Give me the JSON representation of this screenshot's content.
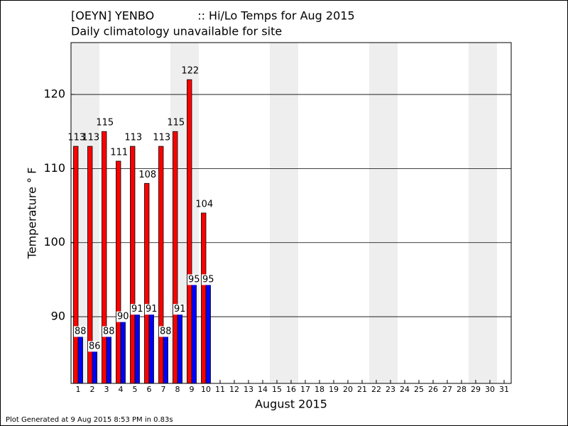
{
  "chart_data": {
    "type": "bar",
    "title": "[OEYN] YENBO            :: Hi/Lo Temps for Aug 2015",
    "subtitle": "Daily climatology unavailable for site",
    "ylabel": "Temperature ° F",
    "xlabel": "August 2015",
    "footer": "Plot Generated at 9 Aug 2015 8:53 PM in 0.83s",
    "x": [
      1,
      2,
      3,
      4,
      5,
      6,
      7,
      8,
      9,
      10
    ],
    "series": [
      {
        "color": "#ff0000",
        "values": [
          113,
          113,
          115,
          111,
          113,
          108,
          113,
          115,
          122,
          104
        ]
      },
      {
        "color": "#0000ff",
        "values": [
          88,
          86,
          88,
          90,
          91,
          91,
          88,
          91,
          95,
          95
        ]
      }
    ],
    "xlim": [
      0.5,
      31.5
    ],
    "xticks": [
      1,
      2,
      3,
      4,
      5,
      6,
      7,
      8,
      9,
      10,
      11,
      12,
      13,
      14,
      15,
      16,
      17,
      18,
      19,
      20,
      21,
      22,
      23,
      24,
      25,
      26,
      27,
      28,
      29,
      30,
      31
    ],
    "ylim": [
      81,
      127
    ],
    "yticks": [
      90,
      100,
      110,
      120
    ],
    "grid": true,
    "shaded_days": [
      1,
      2,
      8,
      9,
      15,
      16,
      22,
      23,
      29,
      30
    ]
  }
}
